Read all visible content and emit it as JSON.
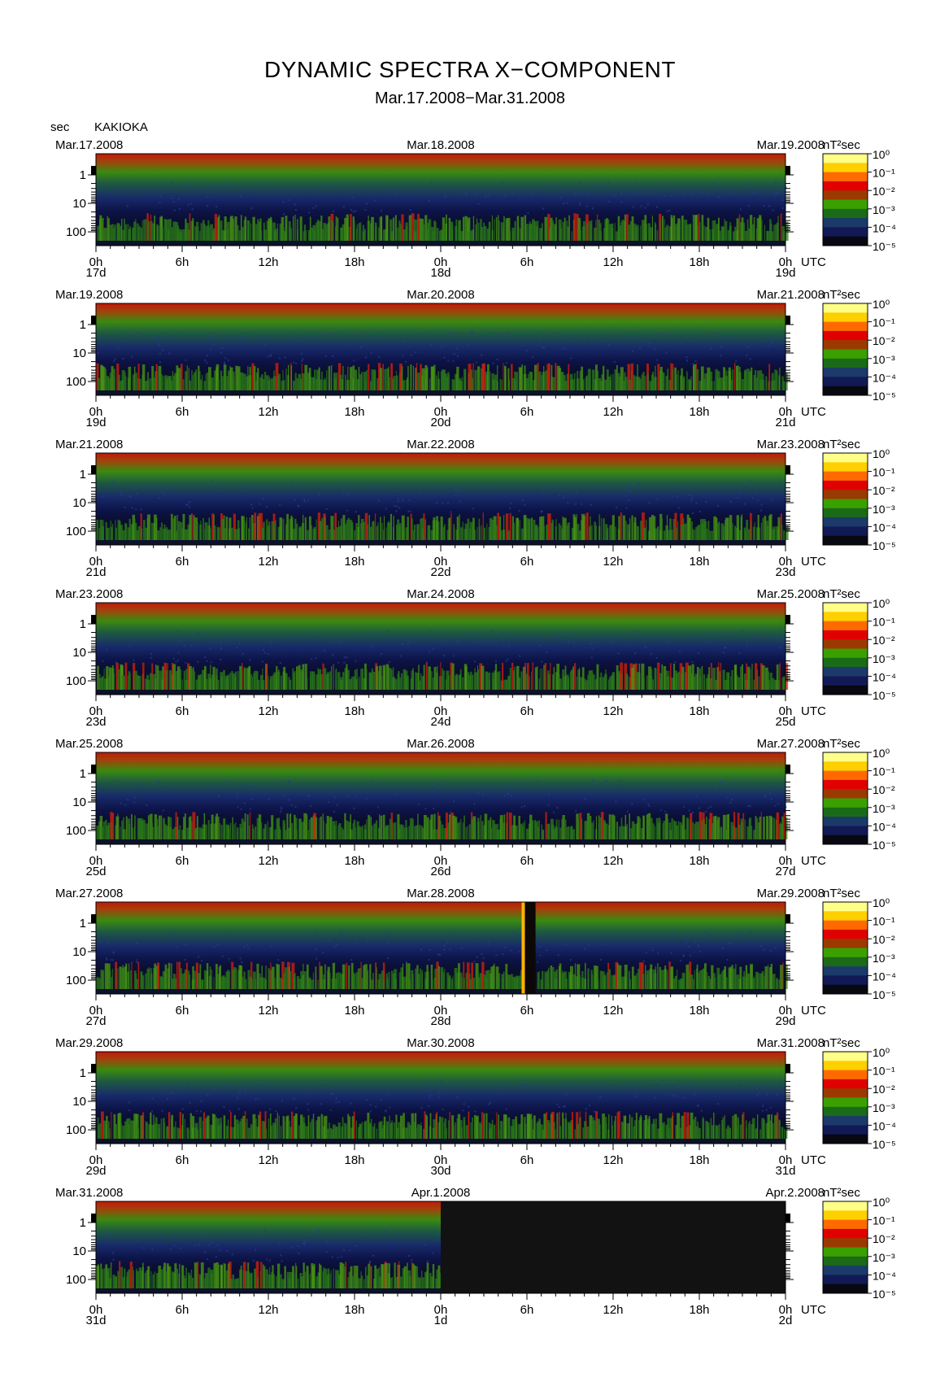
{
  "header": {
    "title": "DYNAMIC SPECTRA X−COMPONENT",
    "subtitle": "Mar.17.2008−Mar.31.2008",
    "unit_label": "sec",
    "station": "KAKIOKA"
  },
  "colorbar": {
    "unit_label": "nT²sec",
    "tick_labels": [
      "10⁰",
      "10⁻¹",
      "10⁻²",
      "10⁻³",
      "10⁻⁴",
      "10⁻⁵"
    ],
    "colors": [
      "#ffff88",
      "#ffd000",
      "#ff6a00",
      "#e00000",
      "#9a3a00",
      "#3aa000",
      "#1a6a18",
      "#1b3a6a",
      "#121a55",
      "#080810"
    ]
  },
  "x_tick_labels": [
    "0h",
    "6h",
    "12h",
    "18h",
    "0h",
    "6h",
    "12h",
    "18h",
    "0h"
  ],
  "utc_label": "UTC",
  "y_tick_labels": [
    "1",
    "10",
    "100"
  ],
  "panels": [
    {
      "left_date": "Mar.17.2008",
      "mid_date": "Mar.18.2008",
      "right_date": "Mar.19.2008",
      "day_labels": [
        "17d",
        "18d",
        "19d"
      ],
      "no_data_from_hour": null,
      "gap_hours": null
    },
    {
      "left_date": "Mar.19.2008",
      "mid_date": "Mar.20.2008",
      "right_date": "Mar.21.2008",
      "day_labels": [
        "19d",
        "20d",
        "21d"
      ],
      "no_data_from_hour": null,
      "gap_hours": null
    },
    {
      "left_date": "Mar.21.2008",
      "mid_date": "Mar.22.2008",
      "right_date": "Mar.23.2008",
      "day_labels": [
        "21d",
        "22d",
        "23d"
      ],
      "no_data_from_hour": null,
      "gap_hours": null
    },
    {
      "left_date": "Mar.23.2008",
      "mid_date": "Mar.24.2008",
      "right_date": "Mar.25.2008",
      "day_labels": [
        "23d",
        "24d",
        "25d"
      ],
      "no_data_from_hour": null,
      "gap_hours": null
    },
    {
      "left_date": "Mar.25.2008",
      "mid_date": "Mar.26.2008",
      "right_date": "Mar.27.2008",
      "day_labels": [
        "25d",
        "26d",
        "27d"
      ],
      "no_data_from_hour": null,
      "gap_hours": null
    },
    {
      "left_date": "Mar.27.2008",
      "mid_date": "Mar.28.2008",
      "right_date": "Mar.29.2008",
      "day_labels": [
        "27d",
        "28d",
        "29d"
      ],
      "no_data_from_hour": null,
      "gap_hours": [
        29.8,
        30.6
      ]
    },
    {
      "left_date": "Mar.29.2008",
      "mid_date": "Mar.30.2008",
      "right_date": "Mar.31.2008",
      "day_labels": [
        "29d",
        "30d",
        "31d"
      ],
      "no_data_from_hour": null,
      "gap_hours": null
    },
    {
      "left_date": "Mar.31.2008",
      "mid_date": "Apr.1.2008",
      "right_date": "Apr.2.2008",
      "day_labels": [
        "31d",
        "1d",
        "2d"
      ],
      "no_data_from_hour": 24,
      "gap_hours": null
    }
  ],
  "chart_data": {
    "type": "heatmap",
    "title": "DYNAMIC SPECTRA X−COMPONENT",
    "subtitle": "Mar.17.2008−Mar.31.2008",
    "station": "KAKIOKA",
    "xlabel": "UTC",
    "ylabel": "sec",
    "y_scale": "log",
    "y_ticks": [
      1,
      10,
      100
    ],
    "y_direction": "period increases downward",
    "colorscale": {
      "label": "nT²sec",
      "scale": "log",
      "range": [
        1e-05,
        1
      ]
    },
    "x_range_hours_per_panel": [
      0,
      48
    ],
    "x_tick_hours": [
      0,
      6,
      12,
      18,
      24,
      30,
      36,
      42,
      48
    ],
    "grid": false,
    "legend": "colorbar right of each panel"
  }
}
